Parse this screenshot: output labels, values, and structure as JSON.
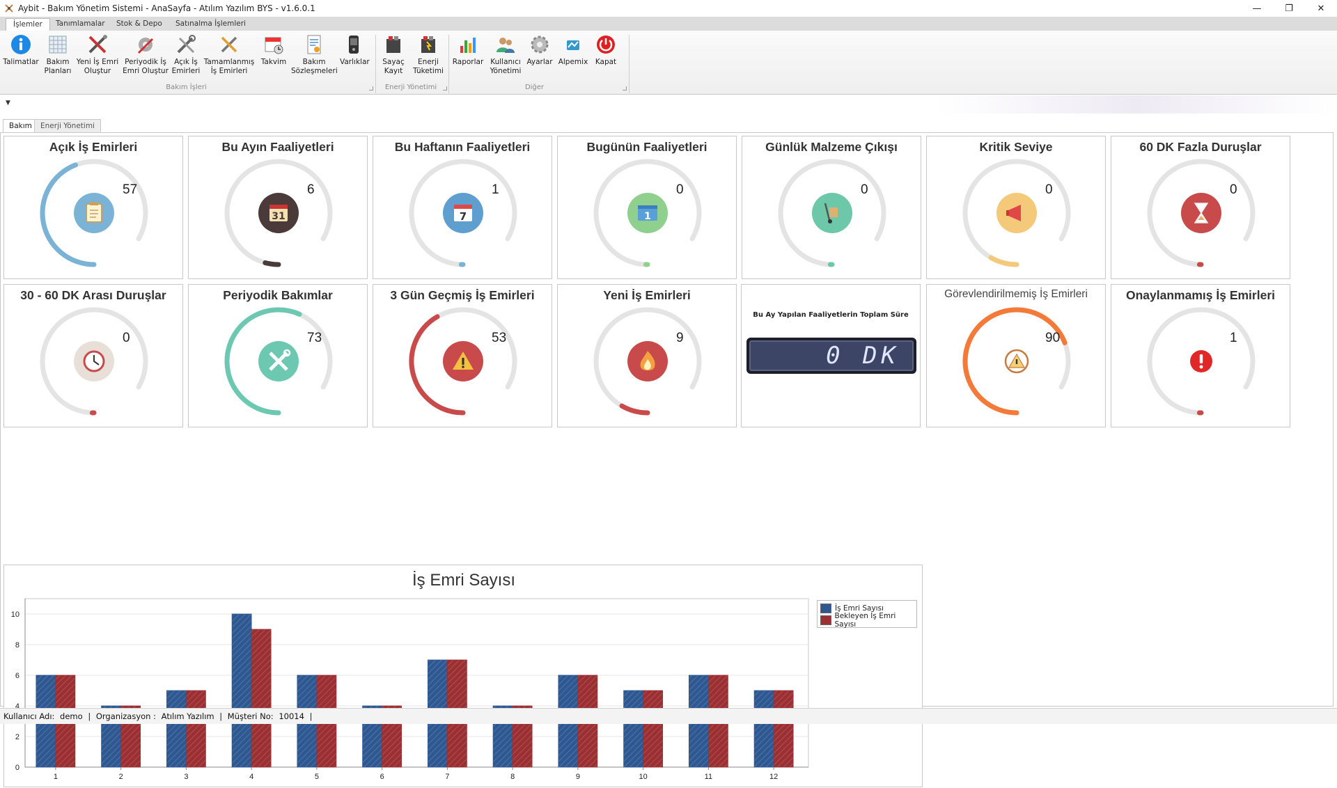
{
  "window": {
    "title": "Aybit - Bakım Yönetim Sistemi - AnaSayfa - Atılım Yazılım BYS - v1.6.0.1",
    "minimize": "—",
    "restore": "❐",
    "close": "✕"
  },
  "ribbon_tabs": [
    "İşlemler",
    "Tanımlamalar",
    "Stok & Depo",
    "Satınalma İşlemleri"
  ],
  "ribbon": {
    "buttons": [
      {
        "label1": "Talimatlar",
        "label2": "",
        "icon": "info-icon"
      },
      {
        "label1": "Bakım",
        "label2": "Planları",
        "icon": "calendar-grid-icon"
      },
      {
        "label1": "Yeni İş Emri",
        "label2": "Oluştur",
        "icon": "tools-cross-icon"
      },
      {
        "label1": "Periyodik İş",
        "label2": "Emri Oluştur",
        "icon": "gear-tools-icon"
      },
      {
        "label1": "Açık İş",
        "label2": "Emirleri",
        "icon": "wrench-screwdriver-icon"
      },
      {
        "label1": "Tamamlanmış",
        "label2": "İş Emirleri",
        "icon": "tools-check-icon"
      },
      {
        "label1": "Takvim",
        "label2": "",
        "icon": "calendar-clock-icon"
      },
      {
        "label1": "Bakım",
        "label2": "Sözleşmeleri",
        "icon": "contract-icon"
      },
      {
        "label1": "Varlıklar",
        "label2": "",
        "icon": "device-icon"
      },
      {
        "label1": "Sayaç",
        "label2": "Kayıt",
        "icon": "meter-icon"
      },
      {
        "label1": "Enerji",
        "label2": "Tüketimi",
        "icon": "energy-meter-icon"
      },
      {
        "label1": "Raporlar",
        "label2": "",
        "icon": "bar-report-icon"
      },
      {
        "label1": "Kullanıcı",
        "label2": "Yönetimi",
        "icon": "users-icon"
      },
      {
        "label1": "Ayarlar",
        "label2": "",
        "icon": "gear-icon"
      },
      {
        "label1": "Alpemix",
        "label2": "",
        "icon": "alpemix-icon"
      },
      {
        "label1": "Kapat",
        "label2": "",
        "icon": "power-icon"
      }
    ],
    "groups": [
      "Bakım İşleri",
      "Enerji Yönetimi",
      "Diğer"
    ]
  },
  "doc_tabs": [
    "Bakım",
    "Enerji Yönetimi"
  ],
  "tiles": [
    {
      "title": "Açık İş Emirleri",
      "value": "57",
      "fraction": 0.53,
      "color": "#7ab3d6",
      "icon": "clipboard-icon",
      "icon_bg": "#7ab3d6"
    },
    {
      "title": "Bu Ayın Faaliyetleri",
      "value": "6",
      "fraction": 0.05,
      "color": "#4a3a3a",
      "icon": "calendar-31-icon",
      "icon_bg": "#4a3a3a"
    },
    {
      "title": "Bu Haftanın Faaliyetleri",
      "value": "1",
      "fraction": 0.0,
      "color": "#7ab3d6",
      "icon": "calendar-7-icon",
      "icon_bg": "#5e9fd0"
    },
    {
      "title": "Bugünün Faaliyetleri",
      "value": "0",
      "fraction": 0.0,
      "color": "#8fd08f",
      "icon": "calendar-1-icon",
      "icon_bg": "#8fd08f"
    },
    {
      "title": "Günlük Malzeme Çıkışı",
      "value": "0",
      "fraction": 0.0,
      "color": "#6cc8a8",
      "icon": "hand-truck-icon",
      "icon_bg": "#6cc8a8"
    },
    {
      "title": "Kritik Seviye",
      "value": "0",
      "fraction": 0.1,
      "color": "#f5c97a",
      "icon": "megaphone-icon",
      "icon_bg": "#f5c97a"
    },
    {
      "title": "60 DK Fazla Duruşlar",
      "value": "0",
      "fraction": 0.0,
      "color": "#c94a4a",
      "icon": "hourglass-icon",
      "icon_bg": "#c94a4a"
    },
    {
      "title": "30 - 60 DK Arası Duruşlar",
      "value": "0",
      "fraction": 0.0,
      "color": "#c94a4a",
      "icon": "clock-icon",
      "icon_bg": "#e8e0d8"
    },
    {
      "title": "Periyodik Bakımlar",
      "value": "73",
      "fraction": 0.68,
      "color": "#6cc8b0",
      "icon": "tools-icon",
      "icon_bg": "#6cc8b0"
    },
    {
      "title": "3 Gün Geçmiş İş Emirleri",
      "value": "53",
      "fraction": 0.5,
      "color": "#c94a4a",
      "icon": "warning-icon",
      "icon_bg": "#c94a4a"
    },
    {
      "title": "Yeni İş Emirleri",
      "value": "9",
      "fraction": 0.1,
      "color": "#c94a4a",
      "icon": "fire-icon",
      "icon_bg": "#c94a4a"
    },
    {
      "title": "Görevlendirilmemiş İş Emirleri",
      "value": "90",
      "fraction": 0.83,
      "color": "#f47a3a",
      "icon": "alarm-warning-icon",
      "icon_bg": "none"
    },
    {
      "title": "Onaylanmamış İş Emirleri",
      "value": "1",
      "fraction": 0.0,
      "color": "#c94a4a",
      "icon": "exclamation-icon",
      "icon_bg": "none"
    }
  ],
  "duration_tile": {
    "title": "Bu Ay Yapılan Faaliyetlerin Toplam Süre",
    "display": "0 DK"
  },
  "chart_data": {
    "type": "bar",
    "title": "İş Emri Sayısı",
    "categories": [
      "1",
      "2",
      "3",
      "4",
      "5",
      "6",
      "7",
      "8",
      "9",
      "10",
      "11",
      "12"
    ],
    "series": [
      {
        "name": "İş Emri Sayısı",
        "color": "#2e5891",
        "values": [
          6,
          4,
          5,
          10,
          6,
          4,
          7,
          4,
          6,
          5,
          6,
          5
        ]
      },
      {
        "name": "Bekleyen İş Emri Sayısı",
        "color": "#9b2f32",
        "values": [
          6,
          4,
          5,
          9,
          6,
          4,
          7,
          4,
          6,
          5,
          6,
          5
        ]
      }
    ],
    "ylim": [
      0,
      11
    ],
    "yticks": [
      0,
      2,
      4,
      6,
      8,
      10
    ],
    "grid": true,
    "legend": "top-right"
  },
  "status": {
    "user_label": "Kullanıcı Adı:",
    "user": "demo",
    "org_label": "Organizasyon :",
    "org": "Atılım Yazılım",
    "customer_label": "Müşteri No:",
    "customer": "10014",
    "sep": "|"
  }
}
